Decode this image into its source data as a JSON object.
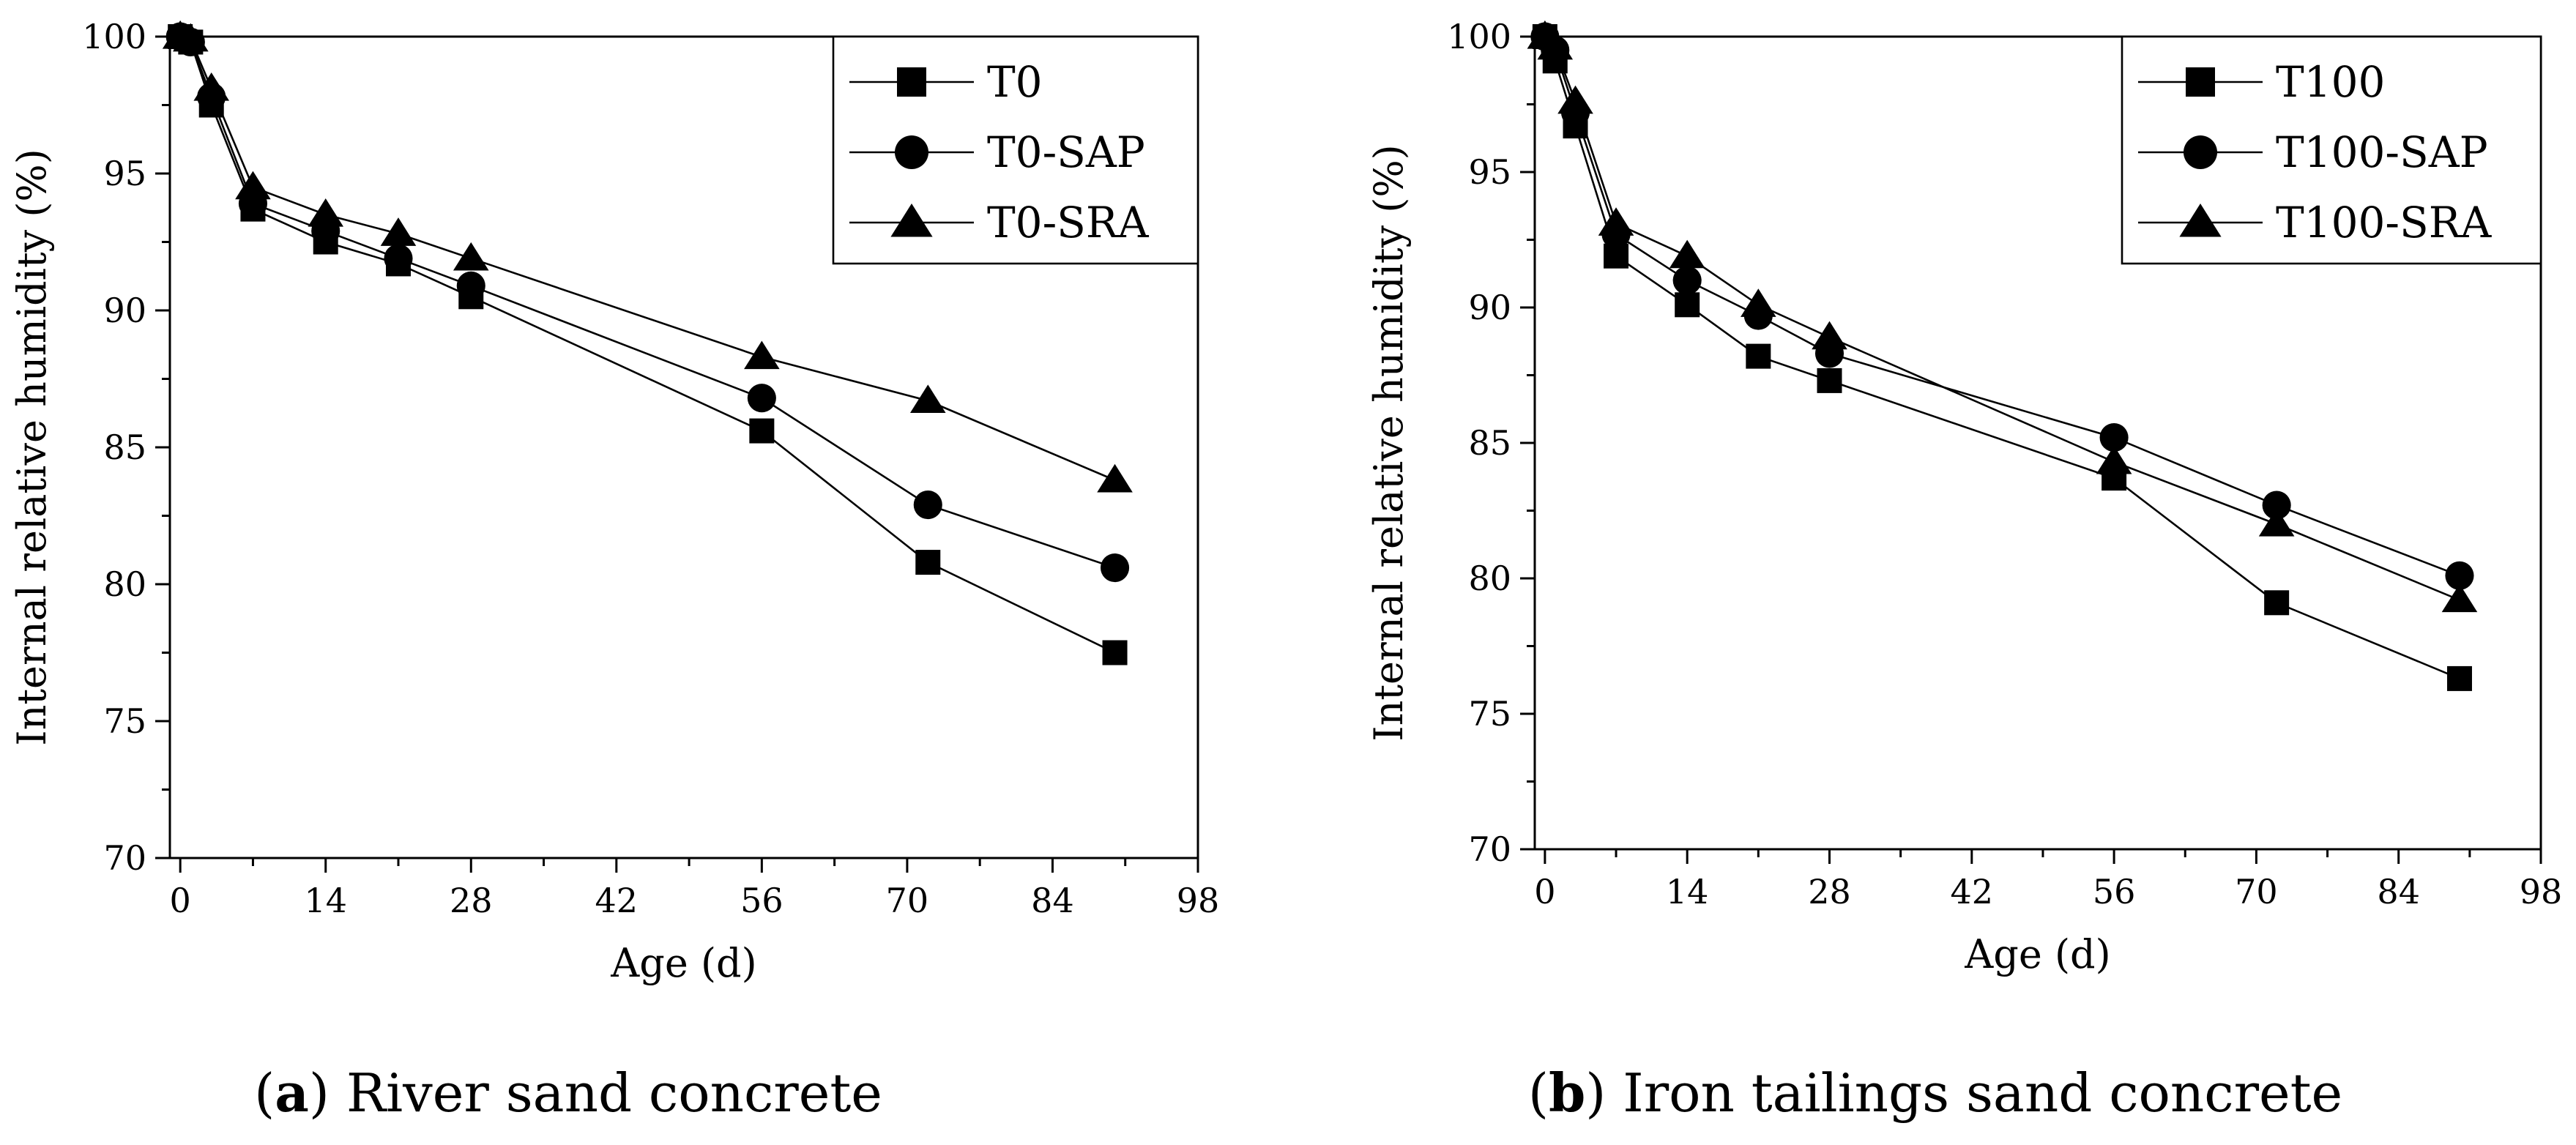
{
  "chart_data": [
    {
      "type": "line",
      "caption_letter": "a",
      "caption_text": " River sand concrete",
      "xlabel": "Age (d)",
      "ylabel": "Internal relative humidity (%)",
      "xlim": [
        -1,
        98
      ],
      "ylim": [
        70,
        100
      ],
      "x_ticks": [
        0,
        14,
        28,
        42,
        56,
        70,
        84,
        98
      ],
      "y_ticks": [
        70,
        75,
        80,
        85,
        90,
        95,
        100
      ],
      "legend_position": "top-right",
      "series": [
        {
          "name": "T0",
          "marker": "square",
          "x": [
            0,
            1,
            3,
            7,
            14,
            21,
            28,
            56,
            72,
            90
          ],
          "y": [
            100,
            99.8,
            97.5,
            93.7,
            92.5,
            91.7,
            90.5,
            85.6,
            80.8,
            77.5
          ]
        },
        {
          "name": "T0-SAP",
          "marker": "circle",
          "x": [
            0,
            1,
            3,
            7,
            14,
            21,
            28,
            56,
            72,
            90
          ],
          "y": [
            100,
            99.8,
            97.8,
            93.9,
            92.9,
            91.9,
            90.9,
            86.8,
            82.9,
            80.6
          ]
        },
        {
          "name": "T0-SRA",
          "marker": "triangle",
          "x": [
            0,
            1,
            3,
            7,
            14,
            21,
            28,
            56,
            72,
            90
          ],
          "y": [
            100,
            99.9,
            98.1,
            94.5,
            93.5,
            92.8,
            91.9,
            88.3,
            86.7,
            83.8
          ]
        }
      ]
    },
    {
      "type": "line",
      "caption_letter": "b",
      "caption_text": " Iron tailings sand concrete",
      "xlabel": "Age (d)",
      "ylabel": "Internal relative humidity (%)",
      "xlim": [
        -1,
        98
      ],
      "ylim": [
        70,
        100
      ],
      "x_ticks": [
        0,
        14,
        28,
        42,
        56,
        70,
        84,
        98
      ],
      "y_ticks": [
        70,
        75,
        80,
        85,
        90,
        95,
        100
      ],
      "legend_position": "top-right",
      "series": [
        {
          "name": "T100",
          "marker": "square",
          "x": [
            0,
            1,
            3,
            7,
            14,
            21,
            28,
            56,
            72,
            90
          ],
          "y": [
            100,
            99.1,
            96.7,
            91.9,
            90.1,
            88.2,
            87.3,
            83.7,
            79.1,
            76.3
          ]
        },
        {
          "name": "T100-SAP",
          "marker": "circle",
          "x": [
            0,
            1,
            3,
            7,
            14,
            21,
            28,
            56,
            72,
            90
          ],
          "y": [
            100,
            99.5,
            97.2,
            92.7,
            91.0,
            89.7,
            88.3,
            85.2,
            82.7,
            80.1
          ]
        },
        {
          "name": "T100-SRA",
          "marker": "triangle",
          "x": [
            0,
            1,
            3,
            7,
            14,
            21,
            28,
            56,
            72,
            90
          ],
          "y": [
            100,
            99.6,
            97.6,
            93.1,
            91.9,
            90.1,
            88.9,
            84.3,
            82.0,
            79.2
          ]
        }
      ]
    }
  ]
}
